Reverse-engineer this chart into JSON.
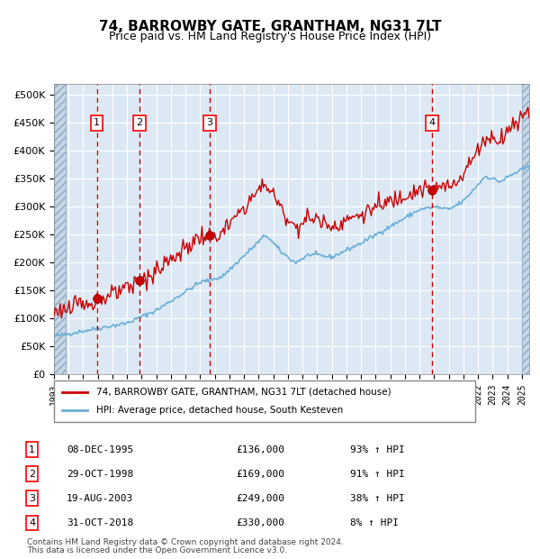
{
  "title": "74, BARROWBY GATE, GRANTHAM, NG31 7LT",
  "subtitle": "Price paid vs. HM Land Registry's House Price Index (HPI)",
  "legend_line1": "74, BARROWBY GATE, GRANTHAM, NG31 7LT (detached house)",
  "legend_line2": "HPI: Average price, detached house, South Kesteven",
  "footer1": "Contains HM Land Registry data © Crown copyright and database right 2024.",
  "footer2": "This data is licensed under the Open Government Licence v3.0.",
  "sales": [
    {
      "num": 1,
      "date": "08-DEC-1995",
      "price": 136000,
      "pct": "93%",
      "year": 1995.93
    },
    {
      "num": 2,
      "date": "29-OCT-1998",
      "price": 169000,
      "pct": "91%",
      "year": 1998.83
    },
    {
      "num": 3,
      "date": "19-AUG-2003",
      "price": 249000,
      "pct": "38%",
      "year": 2003.63
    },
    {
      "num": 4,
      "date": "31-OCT-2018",
      "price": 330000,
      "pct": "8%",
      "year": 2018.83
    }
  ],
  "hpi_color": "#6baed6",
  "property_color": "#cc0000",
  "vline_color": "#cc0000",
  "dot_color": "#cc0000",
  "background_color": "#dce9f5",
  "hatch_color": "#b0c4d8",
  "grid_color": "#ffffff",
  "ylim": [
    0,
    520000
  ],
  "yticks": [
    0,
    50000,
    100000,
    150000,
    200000,
    250000,
    300000,
    350000,
    400000,
    450000,
    500000
  ],
  "xlim_start": 1993.0,
  "xlim_end": 2025.5,
  "xticks": [
    1993,
    1994,
    1995,
    1996,
    1997,
    1998,
    1999,
    2000,
    2001,
    2002,
    2003,
    2004,
    2005,
    2006,
    2007,
    2008,
    2009,
    2010,
    2011,
    2012,
    2013,
    2014,
    2015,
    2016,
    2017,
    2018,
    2019,
    2020,
    2021,
    2022,
    2023,
    2024,
    2025
  ]
}
